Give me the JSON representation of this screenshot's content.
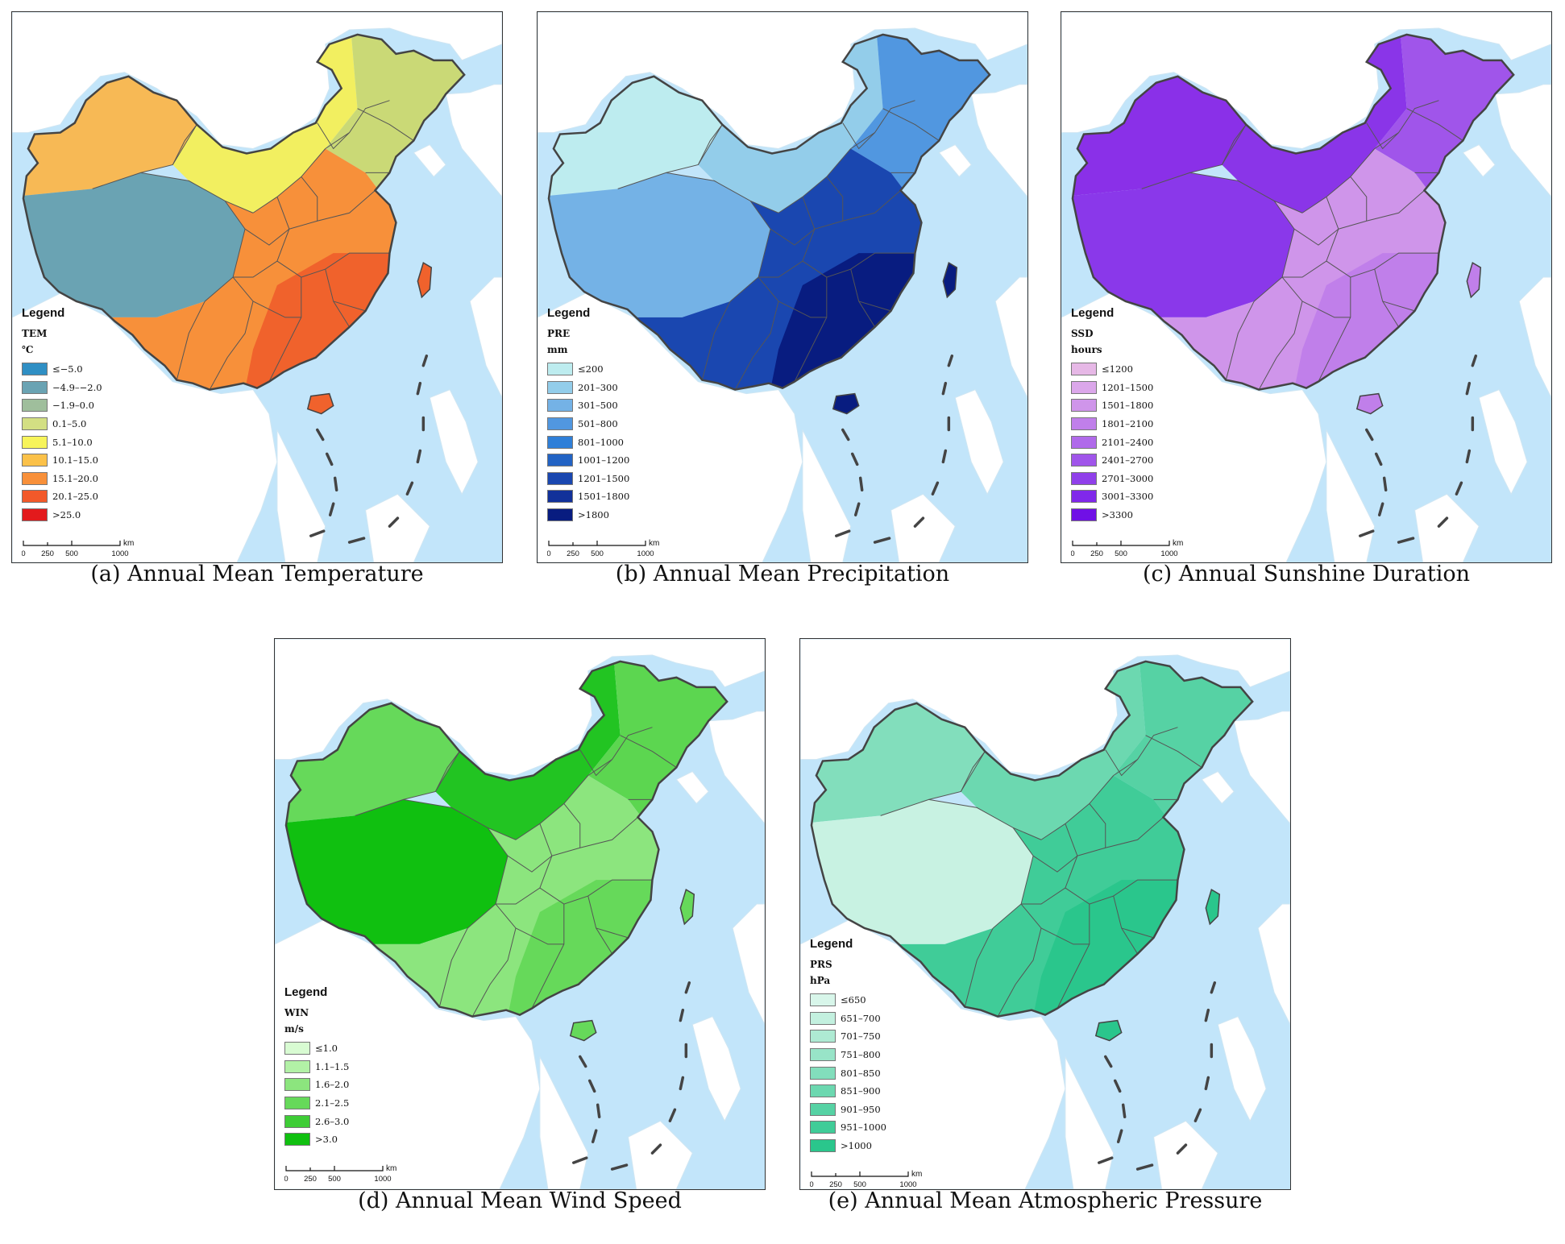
{
  "panels": [
    {
      "id": "a",
      "caption": "(a) Annual Mean Temperature",
      "legend_title": "Legend",
      "variable": "TEM",
      "unit": "℃",
      "classes": [
        {
          "label": "≤−5.0",
          "color": "#2f8fc4"
        },
        {
          "label": "−4.9–−2.0",
          "color": "#6aa3b3"
        },
        {
          "label": "−1.9–0.0",
          "color": "#9fbe9c"
        },
        {
          "label": "0.1–5.0",
          "color": "#d3df83"
        },
        {
          "label": "5.1–10.0",
          "color": "#f7f45a"
        },
        {
          "label": "10.1–15.0",
          "color": "#fbc149"
        },
        {
          "label": "15.1–20.0",
          "color": "#f8903a"
        },
        {
          "label": "20.1–25.0",
          "color": "#f2592a"
        },
        {
          "label": ">25.0",
          "color": "#e31a1c"
        }
      ],
      "region_colors": {
        "nw": "#f7b955",
        "tibet": "#6aa3b3",
        "north": "#f2ef60",
        "ne": "#cad976",
        "south": "#f7903a",
        "coast": "#f0622c"
      }
    },
    {
      "id": "b",
      "caption": "(b) Annual Mean Precipitation",
      "legend_title": "Legend",
      "variable": "PRE",
      "unit": "mm",
      "classes": [
        {
          "label": "≤200",
          "color": "#bdecef"
        },
        {
          "label": "201–300",
          "color": "#93cdea"
        },
        {
          "label": "301–500",
          "color": "#74b2e6"
        },
        {
          "label": "501–800",
          "color": "#5197e0"
        },
        {
          "label": "801–1000",
          "color": "#2f7fd8"
        },
        {
          "label": "1001–1200",
          "color": "#2263c4"
        },
        {
          "label": "1201–1500",
          "color": "#1a47b0"
        },
        {
          "label": "1501–1800",
          "color": "#12319a"
        },
        {
          "label": ">1800",
          "color": "#081c80"
        }
      ],
      "region_colors": {
        "nw": "#bdecef",
        "tibet": "#74b2e6",
        "north": "#93cdea",
        "ne": "#5197e0",
        "south": "#1a47b0",
        "coast": "#081c80"
      }
    },
    {
      "id": "c",
      "caption": "(c) Annual Sunshine Duration",
      "legend_title": "Legend",
      "variable": "SSD",
      "unit": "hours",
      "classes": [
        {
          "label": "≤1200",
          "color": "#e6b8e6"
        },
        {
          "label": "1201–1500",
          "color": "#dba7ea"
        },
        {
          "label": "1501–1800",
          "color": "#cf95ea"
        },
        {
          "label": "1801–2100",
          "color": "#c07fea"
        },
        {
          "label": "2101–2400",
          "color": "#b06aea"
        },
        {
          "label": "2401–2700",
          "color": "#a055ea"
        },
        {
          "label": "2701–3000",
          "color": "#9040ea"
        },
        {
          "label": "3001–3300",
          "color": "#8028ea"
        },
        {
          "label": ">3300",
          "color": "#7010e6"
        }
      ],
      "region_colors": {
        "nw": "#8a30e8",
        "tibet": "#8a38ea",
        "north": "#8a35e8",
        "ne": "#a055ea",
        "south": "#cf95ea",
        "coast": "#c07fea"
      }
    },
    {
      "id": "d",
      "caption": "(d) Annual Mean Wind Speed",
      "legend_title": "Legend",
      "variable": "WIN",
      "unit": "m/s",
      "classes": [
        {
          "label": "≤1.0",
          "color": "#d8fbd2"
        },
        {
          "label": "1.1–1.5",
          "color": "#b2f1a6"
        },
        {
          "label": "1.6–2.0",
          "color": "#8ce57e"
        },
        {
          "label": "2.1–2.5",
          "color": "#66d95a"
        },
        {
          "label": "2.6–3.0",
          "color": "#3ecd36"
        },
        {
          "label": ">3.0",
          "color": "#10c010"
        }
      ],
      "region_colors": {
        "nw": "#66d95a",
        "tibet": "#10c010",
        "north": "#22c422",
        "ne": "#5cd650",
        "south": "#8ce57e",
        "coast": "#66d95a"
      }
    },
    {
      "id": "e",
      "caption": "(e) Annual Mean Atmospheric Pressure",
      "legend_title": "Legend",
      "variable": "PRS",
      "unit": "hPa",
      "classes": [
        {
          "label": "≤650",
          "color": "#d8f6ea"
        },
        {
          "label": "651–700",
          "color": "#c3f0df"
        },
        {
          "label": "701–750",
          "color": "#aeead3"
        },
        {
          "label": "751–800",
          "color": "#98e4c8"
        },
        {
          "label": "801–850",
          "color": "#82debc"
        },
        {
          "label": "851–900",
          "color": "#6cd8b0"
        },
        {
          "label": "901–950",
          "color": "#56d2a4"
        },
        {
          "label": "951–1000",
          "color": "#40cc98"
        },
        {
          "label": ">1000",
          "color": "#2ac68c"
        }
      ],
      "region_colors": {
        "nw": "#82debc",
        "tibet": "#c8f2e2",
        "north": "#6cd8b0",
        "ne": "#56d2a4",
        "south": "#40cc98",
        "coast": "#2ac68c"
      }
    }
  ],
  "scalebar": {
    "ticks": [
      "0",
      "250",
      "500",
      "1000"
    ],
    "unit": "km"
  },
  "colors": {
    "sea": "#c2e5fa",
    "land_outside": "#ffffff",
    "border": "#555555",
    "dash": "#444444"
  }
}
